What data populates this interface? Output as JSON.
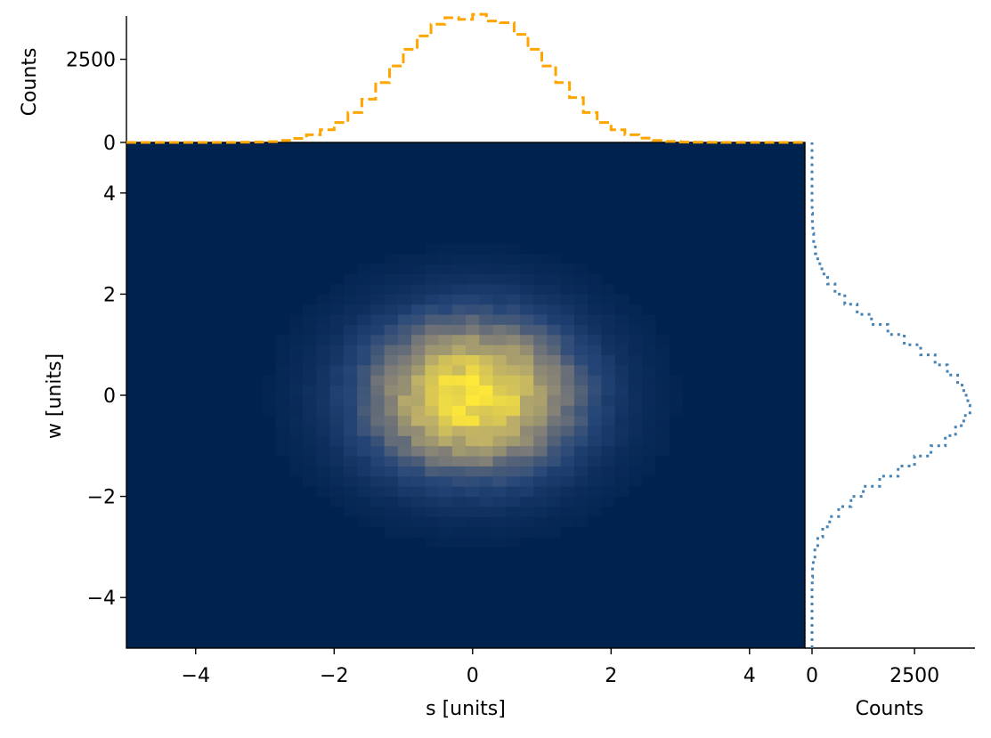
{
  "chart_data": [
    {
      "type": "heatmap",
      "panel": "main",
      "title": "",
      "xlabel": "s [units]",
      "ylabel": "w [units]",
      "xlim": [
        -5,
        4.8
      ],
      "ylim": [
        -5,
        5
      ],
      "xticks": [
        "−4",
        "−2",
        "0",
        "2",
        "4"
      ],
      "yticks": [
        "−4",
        "−2",
        "0",
        "2",
        "4"
      ],
      "xtick_values": [
        -4,
        -2,
        0,
        2,
        4
      ],
      "ytick_values": [
        -4,
        -2,
        0,
        2,
        4
      ],
      "colormap": "cividis",
      "distribution": {
        "kind": "bivariate normal",
        "mean_s": 0.0,
        "mean_w": 0.0,
        "std_s": 1.0,
        "std_w": 1.0
      },
      "bins": {
        "s": 50,
        "w": 50
      }
    },
    {
      "type": "line",
      "panel": "top-marginal",
      "style": "step",
      "ylabel": "Counts",
      "yticks": [
        "0",
        "2500"
      ],
      "ytick_values": [
        0,
        2500
      ],
      "ylim": [
        0,
        3800
      ],
      "color": "#FFA500",
      "linestyle": "dashed",
      "x": [
        -5.0,
        -4.8,
        -4.6,
        -4.4,
        -4.2,
        -4.0,
        -3.8,
        -3.6,
        -3.4,
        -3.2,
        -3.0,
        -2.8,
        -2.6,
        -2.4,
        -2.2,
        -2.0,
        -1.8,
        -1.6,
        -1.4,
        -1.2,
        -1.0,
        -0.8,
        -0.6,
        -0.4,
        -0.2,
        0.0,
        0.2,
        0.4,
        0.6,
        0.8,
        1.0,
        1.2,
        1.4,
        1.6,
        1.8,
        2.0,
        2.2,
        2.4,
        2.6,
        2.8,
        3.0,
        3.2,
        3.4,
        3.6,
        3.8,
        4.0,
        4.2,
        4.4,
        4.6
      ],
      "values": [
        0,
        0,
        0,
        0,
        0,
        0,
        0,
        0,
        5,
        10,
        25,
        60,
        120,
        230,
        380,
        600,
        900,
        1300,
        1800,
        2300,
        2800,
        3200,
        3550,
        3750,
        3700,
        3850,
        3650,
        3600,
        3250,
        2800,
        2300,
        1800,
        1350,
        900,
        600,
        380,
        230,
        130,
        60,
        30,
        12,
        5,
        2,
        0,
        0,
        0,
        0,
        0,
        0
      ]
    },
    {
      "type": "line",
      "panel": "right-marginal",
      "style": "step",
      "xlabel": "Counts",
      "xticks": [
        "0",
        "2500"
      ],
      "xtick_values": [
        0,
        2500
      ],
      "xlim": [
        0,
        3800
      ],
      "color": "#4682B4",
      "linestyle": "dotted",
      "y": [
        -5.0,
        -4.8,
        -4.6,
        -4.4,
        -4.2,
        -4.0,
        -3.8,
        -3.6,
        -3.4,
        -3.2,
        -3.0,
        -2.8,
        -2.6,
        -2.4,
        -2.2,
        -2.0,
        -1.8,
        -1.6,
        -1.4,
        -1.2,
        -1.0,
        -0.8,
        -0.6,
        -0.4,
        -0.2,
        0.0,
        0.2,
        0.4,
        0.6,
        0.8,
        1.0,
        1.2,
        1.4,
        1.6,
        1.8,
        2.0,
        2.2,
        2.4,
        2.6,
        2.8,
        3.0,
        3.2,
        3.4,
        3.6,
        3.8,
        4.0,
        4.2,
        4.4,
        4.6,
        4.8
      ],
      "values": [
        0,
        0,
        0,
        0,
        0,
        0,
        5,
        12,
        30,
        70,
        140,
        260,
        430,
        650,
        950,
        1250,
        1650,
        2100,
        2500,
        2900,
        3250,
        3500,
        3700,
        3850,
        3800,
        3700,
        3550,
        3300,
        3000,
        2650,
        2250,
        1850,
        1450,
        1100,
        800,
        560,
        380,
        240,
        140,
        80,
        40,
        20,
        8,
        3,
        0,
        0,
        0,
        0,
        0,
        0
      ]
    }
  ]
}
